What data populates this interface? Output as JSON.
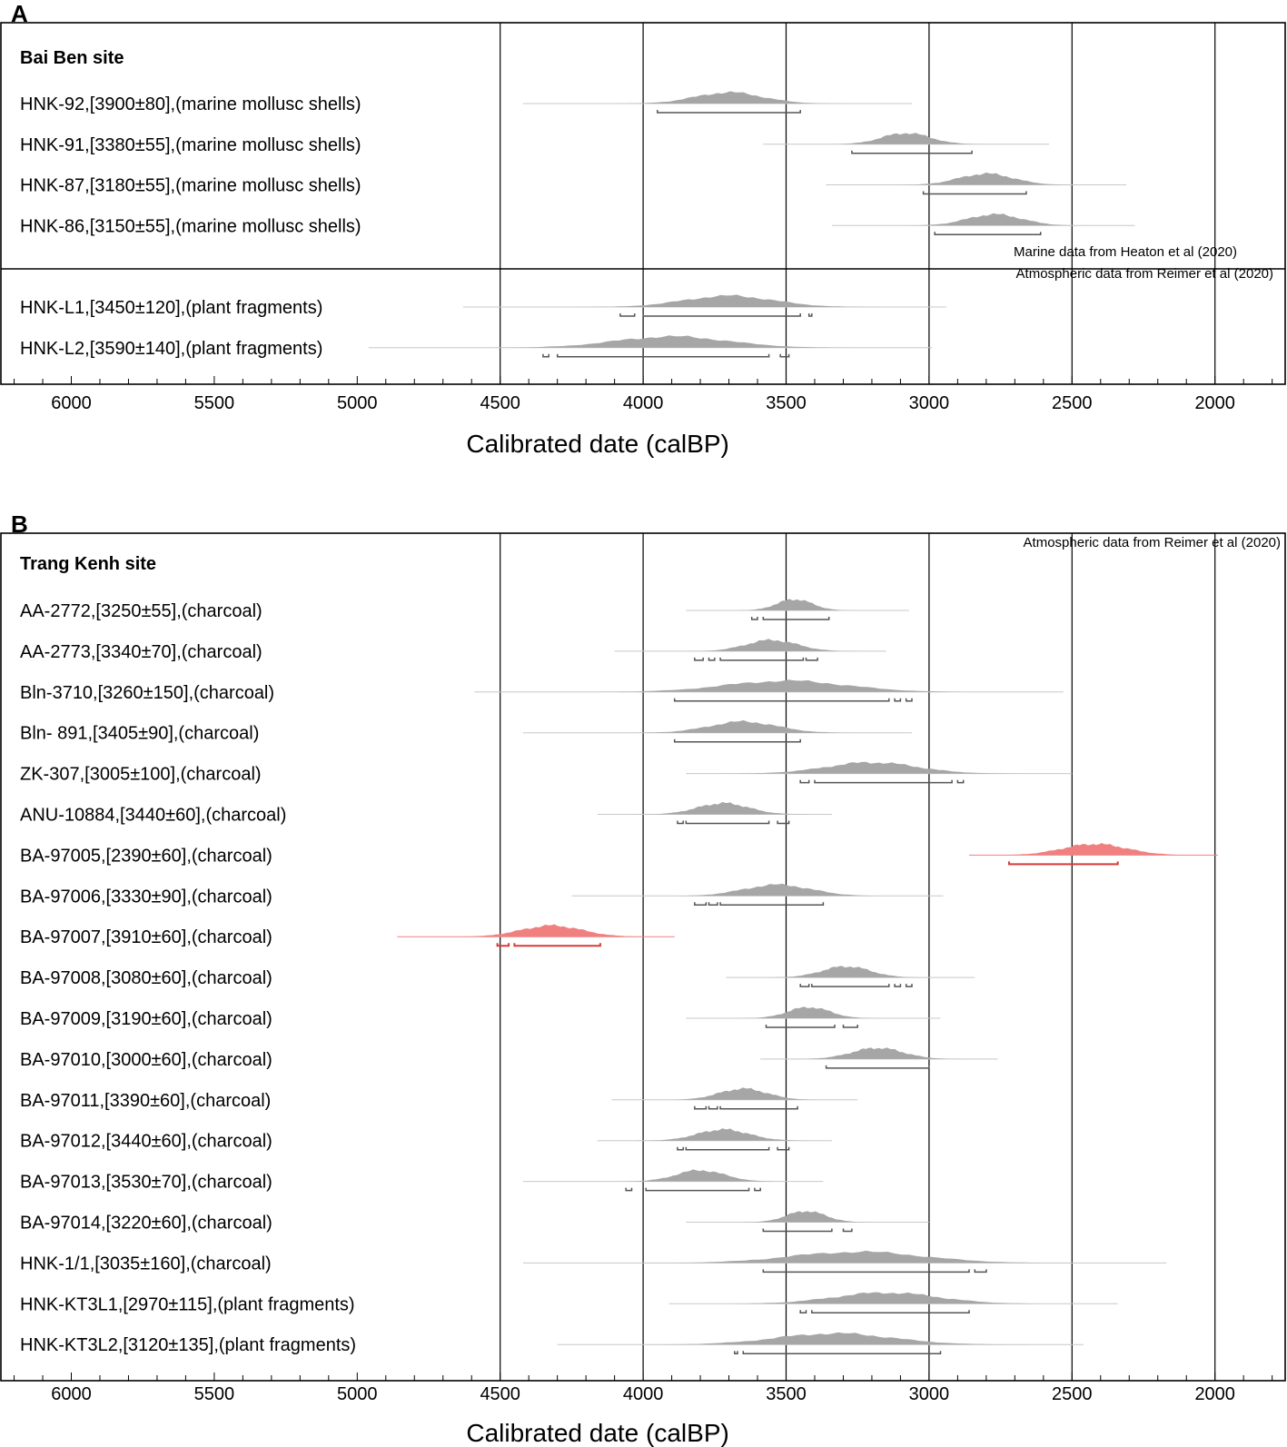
{
  "colors": {
    "dist": "#a6a6a6",
    "dist_highlight": "#f08080",
    "range": "#555555",
    "range_highlight": "#d93a3a",
    "axis": "#000000",
    "faint": "#c8c8c8"
  },
  "chart_data": [
    {
      "type": "range-plot",
      "panel": "A",
      "title": "Bai Ben site",
      "xlabel": "Calibrated date (calBP)",
      "xlim": [
        6200,
        1750
      ],
      "xticks": [
        6000,
        5500,
        5000,
        4500,
        4000,
        3500,
        3000,
        2500,
        2000
      ],
      "gridlines": [
        4500,
        4000,
        3500,
        3000,
        2500,
        2000
      ],
      "notes": [
        "Marine data from Heaton et al (2020)",
        "Atmospheric data from Reimer et al (2020)"
      ],
      "samples": [
        {
          "label": "HNK-92,[3900±80],(marine mollusc shells)",
          "line": [
            4420,
            3060
          ],
          "peak": 3700,
          "width": 420,
          "ranges": [
            [
              3950,
              3450
            ]
          ],
          "group": 0
        },
        {
          "label": "HNK-91,[3380±55],(marine mollusc shells)",
          "line": [
            3580,
            2580
          ],
          "peak": 3080,
          "width": 300,
          "ranges": [
            [
              3270,
              2850
            ]
          ],
          "group": 0
        },
        {
          "label": "HNK-87,[3180±55],(marine mollusc shells)",
          "line": [
            3360,
            2310
          ],
          "peak": 2800,
          "width": 340,
          "ranges": [
            [
              3020,
              2660
            ]
          ],
          "group": 0
        },
        {
          "label": "HNK-86,[3150±55],(marine mollusc shells)",
          "line": [
            3340,
            2280
          ],
          "peak": 2770,
          "width": 340,
          "ranges": [
            [
              2980,
              2610
            ]
          ],
          "group": 0
        },
        {
          "label": "HNK-L1,[3450±120],(plant fragments)",
          "line": [
            4630,
            2940
          ],
          "peak": 3700,
          "width": 560,
          "ranges": [
            [
              4080,
              4030
            ],
            [
              4000,
              3450
            ],
            [
              3420,
              3410
            ]
          ],
          "group": 1
        },
        {
          "label": "HNK-L2,[3590±140],(plant fragments)",
          "line": [
            4960,
            2990
          ],
          "peak": 3900,
          "width": 700,
          "ranges": [
            [
              4350,
              4330
            ],
            [
              4300,
              3560
            ],
            [
              3520,
              3490
            ]
          ],
          "group": 1
        }
      ]
    },
    {
      "type": "range-plot",
      "panel": "B",
      "title": "Trang Kenh site",
      "xlabel": "Calibrated date (calBP)",
      "xlim": [
        6200,
        1750
      ],
      "xticks": [
        6000,
        5500,
        5000,
        4500,
        4000,
        3500,
        3000,
        2500,
        2000
      ],
      "gridlines": [
        4500,
        4000,
        3500,
        3000,
        2500,
        2000
      ],
      "notes": [
        "Atmospheric data from Reimer et al (2020)"
      ],
      "samples": [
        {
          "label": "AA-2772,[3250±55],(charcoal)",
          "line": [
            3850,
            3070
          ],
          "peak": 3470,
          "width": 220,
          "ranges": [
            [
              3620,
              3600
            ],
            [
              3580,
              3350
            ]
          ]
        },
        {
          "label": "AA-2773,[3340±70],(charcoal)",
          "line": [
            4100,
            3150
          ],
          "peak": 3550,
          "width": 320,
          "ranges": [
            [
              3820,
              3790
            ],
            [
              3770,
              3750
            ],
            [
              3730,
              3440
            ],
            [
              3430,
              3390
            ]
          ]
        },
        {
          "label": "Bln-3710,[3260±150],(charcoal)",
          "line": [
            4590,
            2530
          ],
          "peak": 3500,
          "width": 760,
          "ranges": [
            [
              3890,
              3140
            ],
            [
              3120,
              3100
            ],
            [
              3080,
              3060
            ]
          ]
        },
        {
          "label": "Bln- 891,[3405±90],(charcoal)",
          "line": [
            4420,
            3060
          ],
          "peak": 3650,
          "width": 420,
          "ranges": [
            [
              3890,
              3450
            ]
          ]
        },
        {
          "label": "ZK-307,[3005±100],(charcoal)",
          "line": [
            3850,
            2500
          ],
          "peak": 3200,
          "width": 560,
          "ranges": [
            [
              3450,
              3420
            ],
            [
              3400,
              2920
            ],
            [
              2900,
              2880
            ]
          ]
        },
        {
          "label": "ANU-10884,[3440±60],(charcoal)",
          "line": [
            4160,
            3340
          ],
          "peak": 3720,
          "width": 320,
          "ranges": [
            [
              3880,
              3860
            ],
            [
              3850,
              3560
            ],
            [
              3530,
              3490
            ]
          ]
        },
        {
          "label": "BA-97005,[2390±60],(charcoal)",
          "line": [
            2860,
            1990
          ],
          "peak": 2420,
          "width": 400,
          "ranges": [
            [
              2720,
              2340
            ]
          ],
          "highlight": true
        },
        {
          "label": "BA-97006,[3330±90],(charcoal)",
          "line": [
            4250,
            2950
          ],
          "peak": 3530,
          "width": 420,
          "ranges": [
            [
              3820,
              3780
            ],
            [
              3770,
              3740
            ],
            [
              3730,
              3370
            ]
          ]
        },
        {
          "label": "BA-97007,[3910±60],(charcoal)",
          "line": [
            4860,
            3890
          ],
          "peak": 4320,
          "width": 380,
          "ranges": [
            [
              4510,
              4470
            ],
            [
              4450,
              4150
            ]
          ],
          "highlight": true
        },
        {
          "label": "BA-97008,[3080±60],(charcoal)",
          "line": [
            3710,
            2840
          ],
          "peak": 3290,
          "width": 300,
          "ranges": [
            [
              3450,
              3420
            ],
            [
              3410,
              3140
            ],
            [
              3120,
              3100
            ],
            [
              3080,
              3060
            ]
          ]
        },
        {
          "label": "BA-97009,[3190±60],(charcoal)",
          "line": [
            3850,
            2960
          ],
          "peak": 3420,
          "width": 260,
          "ranges": [
            [
              3570,
              3330
            ],
            [
              3300,
              3250
            ]
          ]
        },
        {
          "label": "BA-97010,[3000±60],(charcoal)",
          "line": [
            3590,
            2760
          ],
          "peak": 3180,
          "width": 320,
          "ranges": [
            [
              3360,
              3000
            ]
          ]
        },
        {
          "label": "BA-97011,[3390±60],(charcoal)",
          "line": [
            4110,
            3250
          ],
          "peak": 3650,
          "width": 300,
          "ranges": [
            [
              3820,
              3780
            ],
            [
              3770,
              3740
            ],
            [
              3730,
              3460
            ]
          ]
        },
        {
          "label": "BA-97012,[3440±60],(charcoal)",
          "line": [
            4160,
            3340
          ],
          "peak": 3720,
          "width": 320,
          "ranges": [
            [
              3880,
              3860
            ],
            [
              3850,
              3560
            ],
            [
              3530,
              3490
            ]
          ]
        },
        {
          "label": "BA-97013,[3530±70],(charcoal)",
          "line": [
            4420,
            3370
          ],
          "peak": 3800,
          "width": 300,
          "ranges": [
            [
              4060,
              4040
            ],
            [
              3990,
              3630
            ],
            [
              3610,
              3590
            ]
          ]
        },
        {
          "label": "BA-97014,[3220±60],(charcoal)",
          "line": [
            3850,
            3000
          ],
          "peak": 3430,
          "width": 240,
          "ranges": [
            [
              3580,
              3340
            ],
            [
              3300,
              3270
            ]
          ]
        },
        {
          "label": "HNK-1/1,[3035±160],(charcoal)",
          "line": [
            4420,
            2170
          ],
          "peak": 3250,
          "width": 820,
          "ranges": [
            [
              3580,
              2860
            ],
            [
              2840,
              2800
            ]
          ]
        },
        {
          "label": "HNK-KT3L1,[2970±115],(plant fragments)",
          "line": [
            3910,
            2340
          ],
          "peak": 3150,
          "width": 640,
          "ranges": [
            [
              3450,
              3430
            ],
            [
              3410,
              2860
            ]
          ]
        },
        {
          "label": "HNK-KT3L2,[3120±135],(plant fragments)",
          "line": [
            4300,
            2460
          ],
          "peak": 3330,
          "width": 720,
          "ranges": [
            [
              3680,
              3670
            ],
            [
              3650,
              2960
            ]
          ]
        }
      ]
    }
  ]
}
